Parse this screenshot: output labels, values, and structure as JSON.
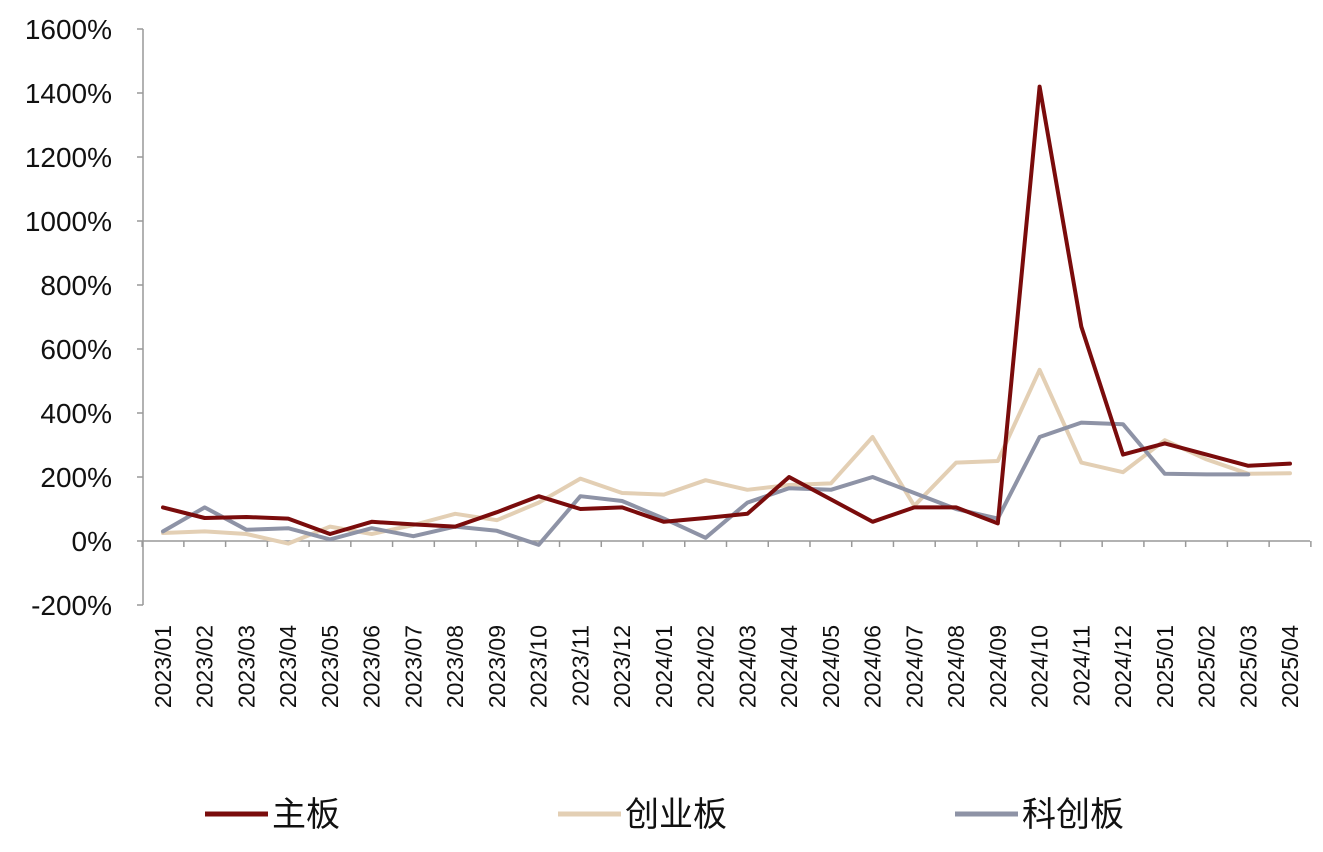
{
  "chart_data": {
    "type": "line",
    "title": "",
    "xlabel": "",
    "ylabel": "",
    "ylim": [
      -200,
      1600
    ],
    "yticks": [
      -200,
      0,
      200,
      400,
      600,
      800,
      1000,
      1200,
      1400,
      1600
    ],
    "ytick_labels": [
      "-200%",
      "0%",
      "200%",
      "400%",
      "600%",
      "800%",
      "1000%",
      "1200%",
      "1400%",
      "1600%"
    ],
    "categories": [
      "2023/01",
      "2023/02",
      "2023/03",
      "2023/04",
      "2023/05",
      "2023/06",
      "2023/07",
      "2023/08",
      "2023/09",
      "2023/10",
      "2023/11",
      "2023/12",
      "2024/01",
      "2024/02",
      "2024/03",
      "2024/04",
      "2024/05",
      "2024/06",
      "2024/07",
      "2024/08",
      "2024/09",
      "2024/10",
      "2024/11",
      "2024/12",
      "2025/01",
      "2025/02",
      "2025/03",
      "2025/04"
    ],
    "grid": false,
    "legend_position": "bottom",
    "series": [
      {
        "name": "主板",
        "color": "#7a0c0c",
        "values": [
          105,
          72,
          75,
          70,
          22,
          60,
          52,
          45,
          90,
          140,
          100,
          105,
          60,
          72,
          85,
          200,
          130,
          60,
          105,
          105,
          55,
          1420,
          670,
          270,
          305,
          270,
          235,
          242
        ]
      },
      {
        "name": "创业板",
        "color": "#e3cfb4",
        "values": [
          25,
          30,
          22,
          -8,
          45,
          22,
          50,
          85,
          65,
          120,
          195,
          150,
          145,
          190,
          160,
          175,
          180,
          325,
          110,
          245,
          250,
          535,
          245,
          215,
          315,
          255,
          210,
          212
        ]
      },
      {
        "name": "科创板",
        "color": "#8e93a6",
        "values": [
          30,
          105,
          35,
          40,
          5,
          40,
          15,
          45,
          32,
          -12,
          140,
          125,
          70,
          10,
          120,
          165,
          160,
          200,
          150,
          100,
          70,
          325,
          370,
          365,
          210,
          208,
          208,
          null
        ]
      }
    ]
  }
}
